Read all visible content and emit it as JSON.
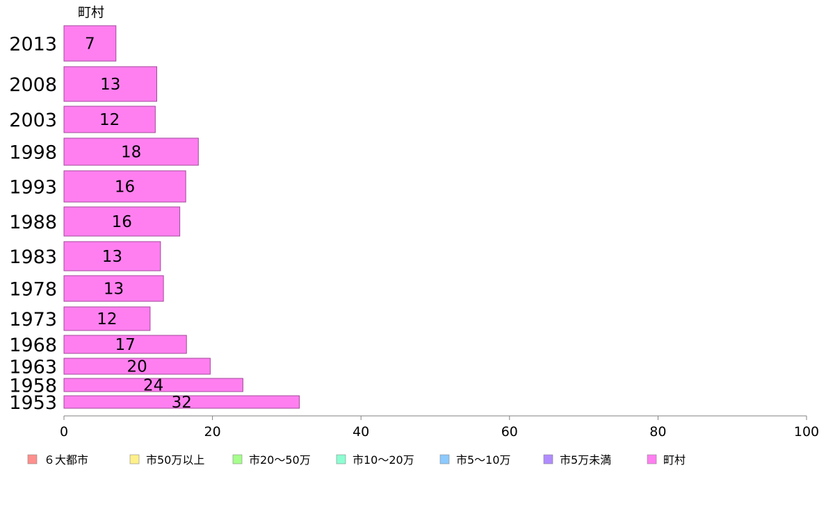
{
  "chart_data": {
    "type": "bar",
    "orientation": "horizontal",
    "title": "町村",
    "categories": [
      "2013",
      "2008",
      "2003",
      "1998",
      "1993",
      "1988",
      "1983",
      "1978",
      "1973",
      "1968",
      "1963",
      "1958",
      "1953"
    ],
    "values": [
      7,
      12.5,
      12.3,
      18.1,
      16.4,
      15.6,
      13,
      13.4,
      11.6,
      16.5,
      19.7,
      24.1,
      31.7
    ],
    "value_labels": [
      "7",
      "13",
      "12",
      "18",
      "16",
      "16",
      "13",
      "13",
      "12",
      "17",
      "20",
      "24",
      "32"
    ],
    "xlim": [
      0,
      100
    ],
    "xticks": [
      "0",
      "20",
      "40",
      "60",
      "80",
      "100"
    ],
    "grid": false,
    "legend_position": "bottom",
    "bar_color": "#ff7ff0",
    "bar_stroke": "#a04a98",
    "legend": [
      {
        "label": "６大都市",
        "color": "#ff8f8c"
      },
      {
        "label": "市50万以上",
        "color": "#fff08a"
      },
      {
        "label": "市20〜50万",
        "color": "#a6ff8c"
      },
      {
        "label": "市10〜20万",
        "color": "#8cffd2"
      },
      {
        "label": "市5〜10万",
        "color": "#8ccaff"
      },
      {
        "label": "市5万未満",
        "color": "#b18cff"
      },
      {
        "label": "町村",
        "color": "#ff7ff0"
      }
    ]
  }
}
